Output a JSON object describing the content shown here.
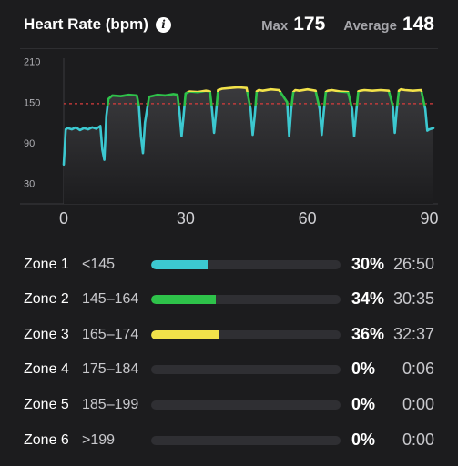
{
  "header": {
    "title": "Heart Rate (bpm)",
    "info_icon": "info-icon",
    "max_label": "Max",
    "max_value": "175",
    "avg_label": "Average",
    "avg_value": "148"
  },
  "chart_data": {
    "type": "line",
    "title": "",
    "xlabel": "",
    "ylabel": "",
    "x_ticks": [
      "0",
      "30",
      "60",
      "90"
    ],
    "y_ticks": [
      "30",
      "90",
      "150",
      "210"
    ],
    "xlim": [
      0,
      91
    ],
    "ylim": [
      0,
      215
    ],
    "reference_line": {
      "value": 148,
      "color": "#d93c3c",
      "style": "dashed"
    },
    "grid": false,
    "zone_colors": {
      "below_145": "#3cc8d0",
      "145_164": "#2ec24a",
      "165_174": "#f2e24a"
    },
    "series": [
      {
        "x": [
          0,
          0.5,
          1,
          2,
          3,
          4,
          5,
          6,
          7,
          8,
          9,
          9.5,
          10,
          10.5,
          11,
          12,
          14,
          16,
          18,
          18.5,
          19,
          19.5,
          20,
          21,
          23,
          25,
          27,
          28,
          28.5,
          29,
          29.5,
          30,
          31,
          33,
          35,
          36,
          36.5,
          37,
          37.5,
          38,
          39,
          41,
          43,
          45,
          46,
          46.5,
          47,
          47.5,
          48,
          49,
          51,
          53,
          55,
          55.5,
          56,
          56.5,
          57,
          58,
          60,
          62,
          63,
          63.5,
          64,
          64.5,
          65,
          66,
          68,
          70,
          71,
          71.5,
          72,
          72.5,
          73,
          74,
          76,
          78,
          80,
          81,
          81.5,
          82,
          82.5,
          83,
          84,
          86,
          88,
          89,
          89.5,
          90,
          91
        ],
        "y": [
          58,
          110,
          112,
          110,
          113,
          109,
          112,
          110,
          113,
          111,
          115,
          80,
          65,
          130,
          155,
          160,
          159,
          161,
          160,
          145,
          100,
          75,
          120,
          158,
          161,
          160,
          162,
          161,
          135,
          100,
          130,
          163,
          166,
          165,
          167,
          166,
          140,
          105,
          135,
          168,
          170,
          171,
          172,
          171,
          140,
          102,
          130,
          166,
          168,
          167,
          169,
          168,
          150,
          100,
          140,
          165,
          168,
          167,
          169,
          167,
          140,
          102,
          135,
          165,
          167,
          168,
          166,
          165,
          140,
          100,
          135,
          166,
          167,
          168,
          167,
          168,
          167,
          145,
          105,
          140,
          167,
          169,
          168,
          167,
          168,
          140,
          108,
          110,
          112
        ]
      }
    ]
  },
  "zones": [
    {
      "name": "Zone 1",
      "range": "<145",
      "percent": "30%",
      "fraction": 0.3,
      "time": "26:50",
      "color": "#3cc8d0"
    },
    {
      "name": "Zone 2",
      "range": "145–164",
      "percent": "34%",
      "fraction": 0.34,
      "time": "30:35",
      "color": "#2ec24a"
    },
    {
      "name": "Zone 3",
      "range": "165–174",
      "percent": "36%",
      "fraction": 0.36,
      "time": "32:37",
      "color": "#f2e24a"
    },
    {
      "name": "Zone 4",
      "range": "175–184",
      "percent": "0%",
      "fraction": 0,
      "time": "0:06",
      "color": "#e88a3a"
    },
    {
      "name": "Zone 5",
      "range": "185–199",
      "percent": "0%",
      "fraction": 0,
      "time": "0:00",
      "color": "#e04848"
    },
    {
      "name": "Zone 6",
      "range": ">199",
      "percent": "0%",
      "fraction": 0,
      "time": "0:00",
      "color": "#b040c0"
    }
  ]
}
